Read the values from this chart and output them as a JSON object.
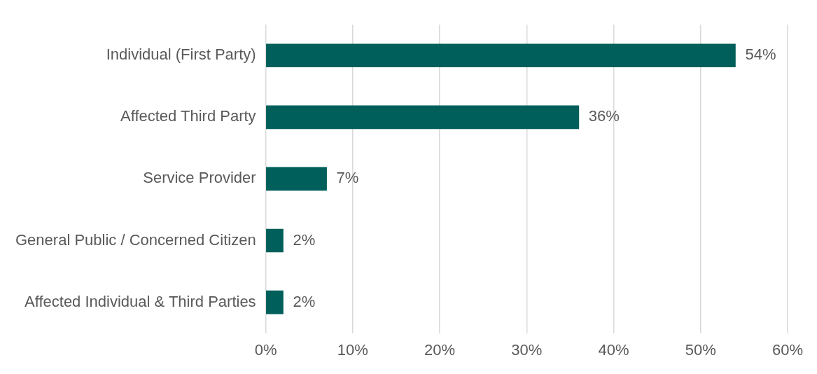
{
  "chart_data": {
    "type": "bar",
    "orientation": "horizontal",
    "categories": [
      "Individual (First Party)",
      "Affected Third Party",
      "Service Provider",
      "General Public / Concerned Citizen",
      "Affected Individual & Third Parties"
    ],
    "values": [
      54,
      36,
      7,
      2,
      2
    ],
    "value_labels": [
      "54%",
      "36%",
      "7%",
      "2%",
      "2%"
    ],
    "color": "#005f5a",
    "xlim": [
      0,
      60
    ],
    "xticks": [
      {
        "value": 0,
        "label": "0%"
      },
      {
        "value": 10,
        "label": "10%"
      },
      {
        "value": 20,
        "label": "20%"
      },
      {
        "value": 30,
        "label": "30%"
      },
      {
        "value": 40,
        "label": "40%"
      },
      {
        "value": 50,
        "label": "50%"
      },
      {
        "value": 60,
        "label": "60%"
      }
    ],
    "grid": "x"
  }
}
